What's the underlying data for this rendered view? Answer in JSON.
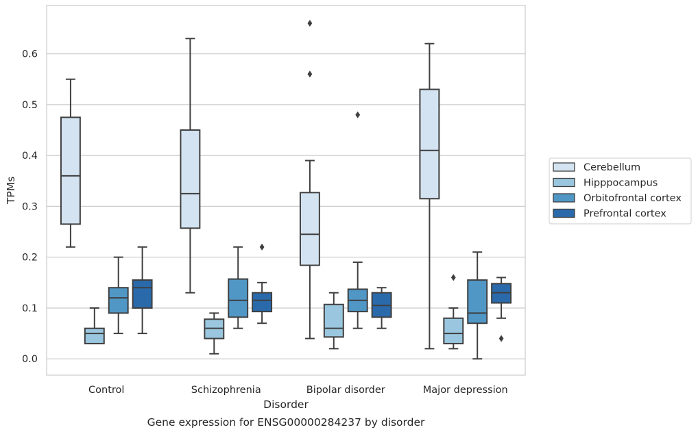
{
  "chart_data": {
    "type": "box",
    "xlabel": "Disorder",
    "ylabel": "TPMs",
    "caption": "Gene expression for ENSG00000284237 by disorder",
    "ylim": [
      -0.032,
      0.695
    ],
    "yticks": [
      "0.0",
      "0.1",
      "0.2",
      "0.3",
      "0.4",
      "0.5",
      "0.6"
    ],
    "grid": "horizontal",
    "legend_position": "right",
    "categories": [
      "Control",
      "Schizophrenia",
      "Bipolar disorder",
      "Major depression"
    ],
    "series": [
      {
        "name": "Cerebellum",
        "color": "#d3e3f1",
        "boxes": [
          {
            "whislo": 0.22,
            "q1": 0.265,
            "med": 0.36,
            "q3": 0.475,
            "whishi": 0.55,
            "fliers": []
          },
          {
            "whislo": 0.13,
            "q1": 0.257,
            "med": 0.325,
            "q3": 0.45,
            "whishi": 0.63,
            "fliers": []
          },
          {
            "whislo": 0.04,
            "q1": 0.184,
            "med": 0.245,
            "q3": 0.327,
            "whishi": 0.39,
            "fliers": [
              0.56,
              0.66
            ]
          },
          {
            "whislo": 0.02,
            "q1": 0.315,
            "med": 0.41,
            "q3": 0.53,
            "whishi": 0.62,
            "fliers": []
          }
        ]
      },
      {
        "name": "Hipppocampus",
        "color": "#9ac7df",
        "boxes": [
          {
            "whislo": 0.03,
            "q1": 0.03,
            "med": 0.05,
            "q3": 0.06,
            "whishi": 0.1,
            "fliers": []
          },
          {
            "whislo": 0.01,
            "q1": 0.04,
            "med": 0.06,
            "q3": 0.078,
            "whishi": 0.09,
            "fliers": []
          },
          {
            "whislo": 0.02,
            "q1": 0.043,
            "med": 0.06,
            "q3": 0.107,
            "whishi": 0.13,
            "fliers": []
          },
          {
            "whislo": 0.02,
            "q1": 0.03,
            "med": 0.05,
            "q3": 0.08,
            "whishi": 0.1,
            "fliers": [
              0.16
            ]
          }
        ]
      },
      {
        "name": "Orbitofrontal cortex",
        "color": "#5097c6",
        "boxes": [
          {
            "whislo": 0.05,
            "q1": 0.09,
            "med": 0.12,
            "q3": 0.14,
            "whishi": 0.2,
            "fliers": []
          },
          {
            "whislo": 0.06,
            "q1": 0.082,
            "med": 0.115,
            "q3": 0.157,
            "whishi": 0.22,
            "fliers": []
          },
          {
            "whislo": 0.06,
            "q1": 0.093,
            "med": 0.115,
            "q3": 0.137,
            "whishi": 0.19,
            "fliers": [
              0.48
            ]
          },
          {
            "whislo": 0.0,
            "q1": 0.07,
            "med": 0.09,
            "q3": 0.155,
            "whishi": 0.21,
            "fliers": []
          }
        ]
      },
      {
        "name": "Prefrontal cortex",
        "color": "#2a6aab",
        "boxes": [
          {
            "whislo": 0.05,
            "q1": 0.1,
            "med": 0.14,
            "q3": 0.155,
            "whishi": 0.22,
            "fliers": []
          },
          {
            "whislo": 0.07,
            "q1": 0.093,
            "med": 0.115,
            "q3": 0.13,
            "whishi": 0.15,
            "fliers": [
              0.22
            ]
          },
          {
            "whislo": 0.06,
            "q1": 0.082,
            "med": 0.105,
            "q3": 0.13,
            "whishi": 0.14,
            "fliers": []
          },
          {
            "whislo": 0.08,
            "q1": 0.11,
            "med": 0.13,
            "q3": 0.148,
            "whishi": 0.16,
            "fliers": [
              0.04
            ]
          }
        ]
      }
    ]
  }
}
